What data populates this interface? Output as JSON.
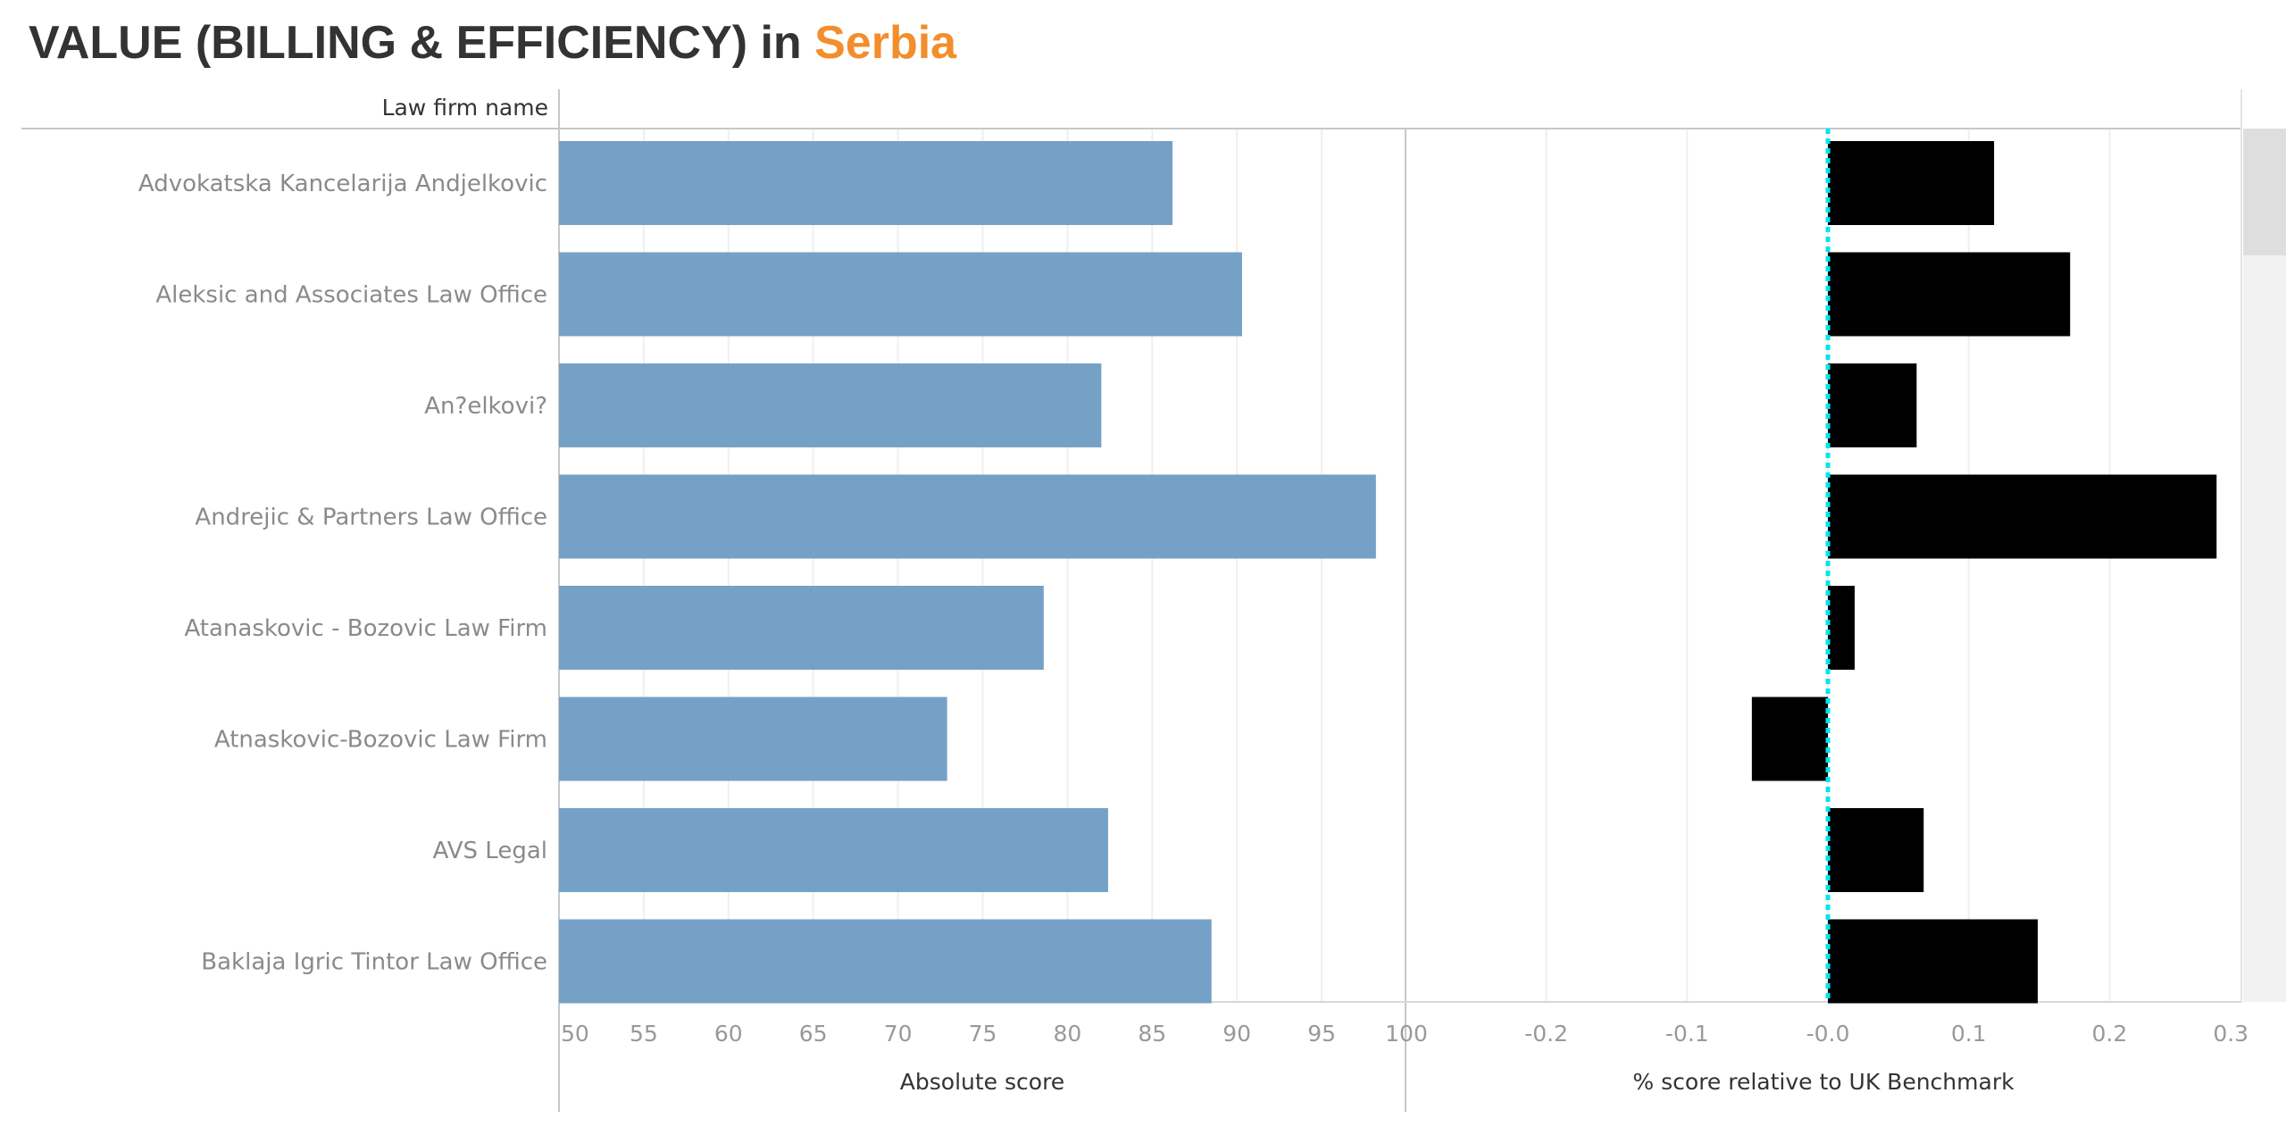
{
  "header": {
    "title_prefix": "VALUE (BILLING & EFFICIENCY) in ",
    "title_country": "Serbia",
    "title_country_color": "#f28e2b",
    "row_header": "Law firm name"
  },
  "chart_data": [
    {
      "type": "bar",
      "orientation": "horizontal",
      "categories": [
        "Advokatska Kancelarija Andjelkovic",
        "Aleksic and Associates Law Office",
        "An?elkovi?",
        "Andrejic & Partners Law Office",
        "Atanaskovic - Bozovic Law Firm",
        "Atnaskovic-Bozovic Law Firm",
        "AVS Legal",
        "Baklaja Igric Tintor Law Office"
      ],
      "values": [
        86.2,
        90.3,
        82.0,
        98.2,
        78.6,
        72.9,
        82.4,
        88.5
      ],
      "xlabel": "Absolute score",
      "xlim": [
        50,
        101.5
      ],
      "ticks": [
        50,
        55,
        60,
        65,
        70,
        75,
        80,
        85,
        90,
        95,
        100
      ],
      "tick_labels": [
        "50",
        "55",
        "60",
        "65",
        "70",
        "75",
        "80",
        "85",
        "90",
        "95",
        "100"
      ],
      "bar_color": "#75a1c7",
      "grid": true
    },
    {
      "type": "bar",
      "orientation": "horizontal",
      "categories": [
        "Advokatska Kancelarija Andjelkovic",
        "Aleksic and Associates Law Office",
        "An?elkovi?",
        "Andrejic & Partners Law Office",
        "Atanaskovic - Bozovic Law Firm",
        "Atnaskovic-Bozovic Law Firm",
        "AVS Legal",
        "Baklaja Igric Tintor Law Office"
      ],
      "values": [
        0.118,
        0.172,
        0.063,
        0.276,
        0.019,
        -0.054,
        0.068,
        0.149
      ],
      "xlabel": "% score relative to UK Benchmark",
      "xlim": [
        -0.3,
        0.3
      ],
      "ticks": [
        -0.2,
        -0.1,
        0.0,
        0.1,
        0.2,
        0.3
      ],
      "tick_labels": [
        "-0.2",
        "-0.1",
        "-0.0",
        "0.1",
        "0.2",
        "0.3"
      ],
      "bar_color": "#000000",
      "reference_line": 0,
      "reference_line_color": "#00e5ee",
      "grid": true
    }
  ]
}
